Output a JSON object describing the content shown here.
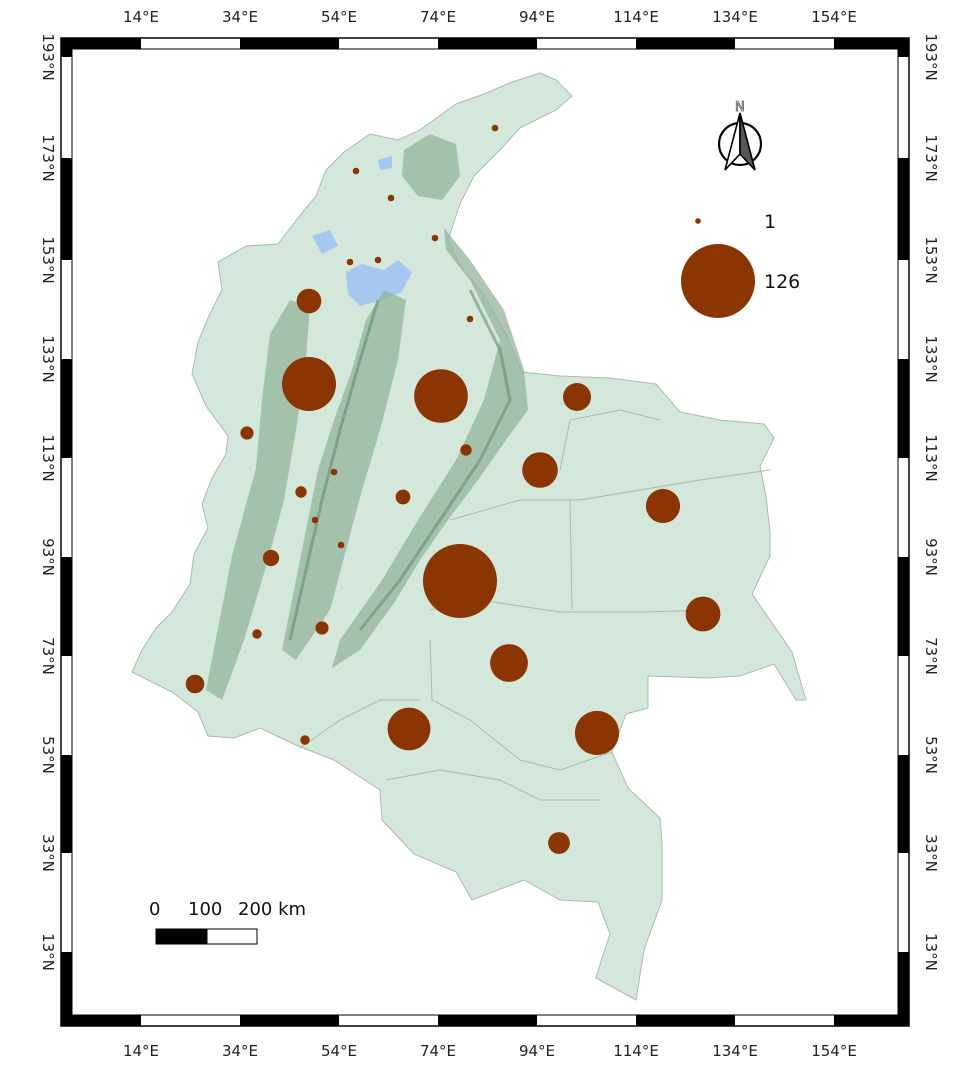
{
  "map": {
    "lon_labels": [
      "14°E",
      "34°E",
      "54°E",
      "74°E",
      "94°E",
      "114°E",
      "134°E",
      "154°E"
    ],
    "lat_labels": [
      "193°N",
      "173°N",
      "153°N",
      "133°N",
      "113°N",
      "93°N",
      "73°N",
      "53°N",
      "33°N",
      "13°N"
    ],
    "colors": {
      "land": "#d3e8db",
      "mountains": "#93b49b",
      "mountain_ridge": "#6c8c72",
      "water": "#a7c8ee",
      "border_line": "#a8bcae",
      "marker": "#8b3503",
      "frame": "#000000"
    },
    "markers": [
      {
        "value": 1
      },
      {
        "value": 1
      },
      {
        "value": 1
      },
      {
        "value": 1
      },
      {
        "value": 1
      },
      {
        "value": 1
      },
      {
        "value": 1
      },
      {
        "value": 14
      },
      {
        "value": 67
      },
      {
        "value": 66
      },
      {
        "value": 18
      },
      {
        "value": 4
      },
      {
        "value": 3
      },
      {
        "value": 29
      },
      {
        "value": 3
      },
      {
        "value": 1
      },
      {
        "value": 5
      },
      {
        "value": 1
      },
      {
        "value": 27
      },
      {
        "value": 6
      },
      {
        "value": 1
      },
      {
        "value": 126
      },
      {
        "value": 28
      },
      {
        "value": 2
      },
      {
        "value": 4
      },
      {
        "value": 33
      },
      {
        "value": 8
      },
      {
        "value": 42
      },
      {
        "value": 45
      },
      {
        "value": 2
      },
      {
        "value": 11
      }
    ]
  },
  "legend": {
    "min_label": "1",
    "max_label": "126"
  },
  "north_arrow": {
    "letter": "N",
    "icon": "north-arrow-icon"
  },
  "scale_bar": {
    "label_0": "0",
    "label_100": "100",
    "label_200": "200 km"
  }
}
